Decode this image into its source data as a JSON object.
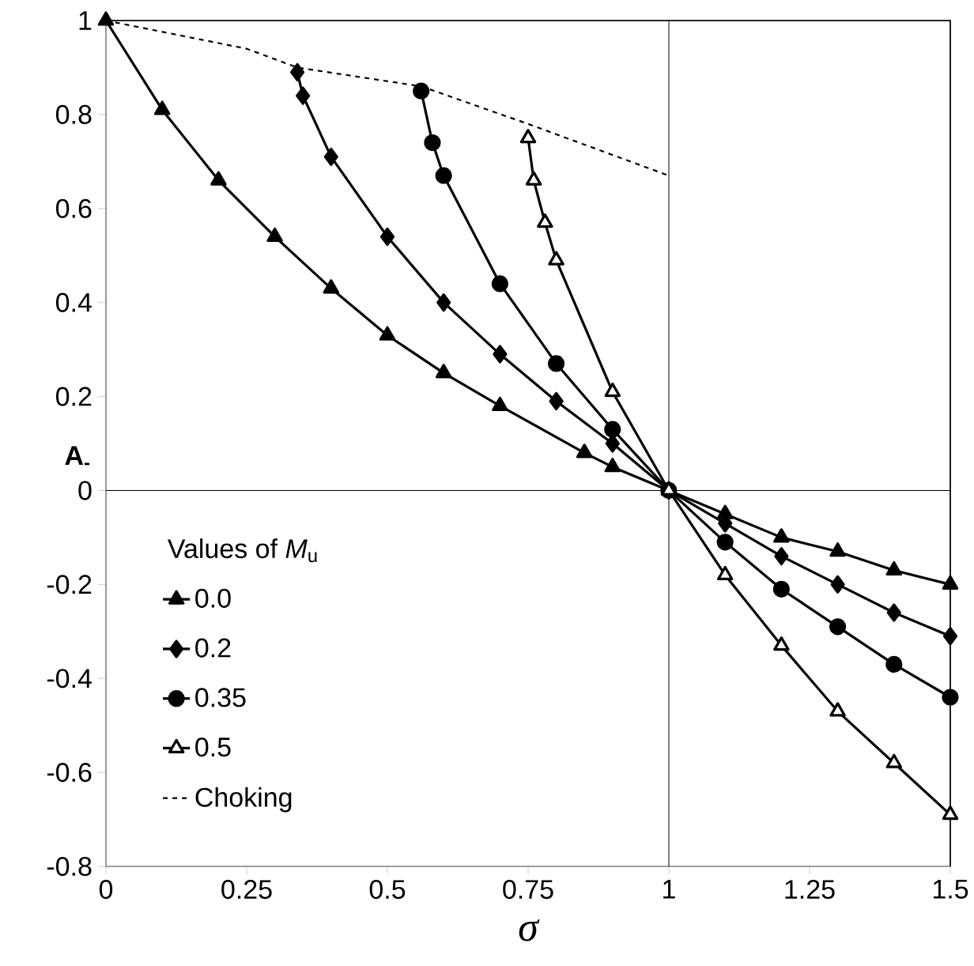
{
  "chart_data": {
    "type": "line",
    "xlabel": "σ",
    "ylabel": "A$_{-}$",
    "legend_title": "Values of *M*$_{u}$",
    "series": [
      {
        "name": "0.0",
        "color": "#000000",
        "marker": "triangle",
        "line_style": "solid",
        "x": [
          0,
          0.1,
          0.2,
          0.3,
          0.4,
          0.5,
          0.6,
          0.7,
          0.85,
          0.9,
          1,
          1.1,
          1.2,
          1.3,
          1.4,
          1.5
        ],
        "values": [
          1,
          0.81,
          0.66,
          0.54,
          0.43,
          0.33,
          0.25,
          0.18,
          0.08,
          0.05,
          0,
          -0.05,
          -0.1,
          -0.13,
          -0.17,
          -0.2
        ]
      },
      {
        "name": "0.2",
        "color": "#000000",
        "marker": "diamond",
        "line_style": "solid",
        "x": [
          0.34,
          0.35,
          0.4,
          0.5,
          0.6,
          0.7,
          0.8,
          0.9,
          1,
          1.1,
          1.2,
          1.3,
          1.4,
          1.5
        ],
        "values": [
          0.89,
          0.84,
          0.71,
          0.54,
          0.4,
          0.29,
          0.19,
          0.1,
          0,
          -0.07,
          -0.14,
          -0.2,
          -0.26,
          -0.31
        ]
      },
      {
        "name": "0.35",
        "color": "#000000",
        "marker": "circle",
        "line_style": "solid",
        "x": [
          0.56,
          0.58,
          0.6,
          0.7,
          0.8,
          0.9,
          1,
          1.1,
          1.2,
          1.3,
          1.4,
          1.5
        ],
        "values": [
          0.85,
          0.74,
          0.67,
          0.44,
          0.27,
          0.13,
          0,
          -0.11,
          -0.21,
          -0.29,
          -0.37,
          -0.44
        ]
      },
      {
        "name": "0.5",
        "color": "#000000",
        "marker": "triangle open",
        "line_style": "solid",
        "x": [
          0.75,
          0.76,
          0.78,
          0.8,
          0.9,
          1,
          1.1,
          1.2,
          1.3,
          1.4,
          1.5
        ],
        "values": [
          0.75,
          0.66,
          0.57,
          0.49,
          0.21,
          0,
          -0.18,
          -0.33,
          -0.47,
          -0.58,
          -0.69
        ]
      },
      {
        "name": "Choking",
        "color": "#000000",
        "marker": "none",
        "line_style": "dashed",
        "x": [
          0,
          0.25,
          0.34,
          0.56,
          0.75,
          1
        ],
        "values": [
          1,
          0.94,
          0.9,
          0.86,
          0.78,
          0.67
        ]
      }
    ],
    "xlim": [
      0,
      1.5
    ],
    "ylim": [
      -0.8,
      1
    ],
    "xticks": [
      0,
      0.25,
      0.5,
      0.75,
      1,
      1.25,
      1.5
    ],
    "yticks": [
      -0.8,
      -0.6,
      -0.4,
      -0.2,
      0,
      0.2,
      0.4,
      0.6,
      0.8,
      1
    ],
    "ref_lines": [
      {
        "axis": "x",
        "value": 1
      },
      {
        "axis": "y",
        "value": 0
      }
    ],
    "grid": false,
    "legend": "bottom left"
  }
}
